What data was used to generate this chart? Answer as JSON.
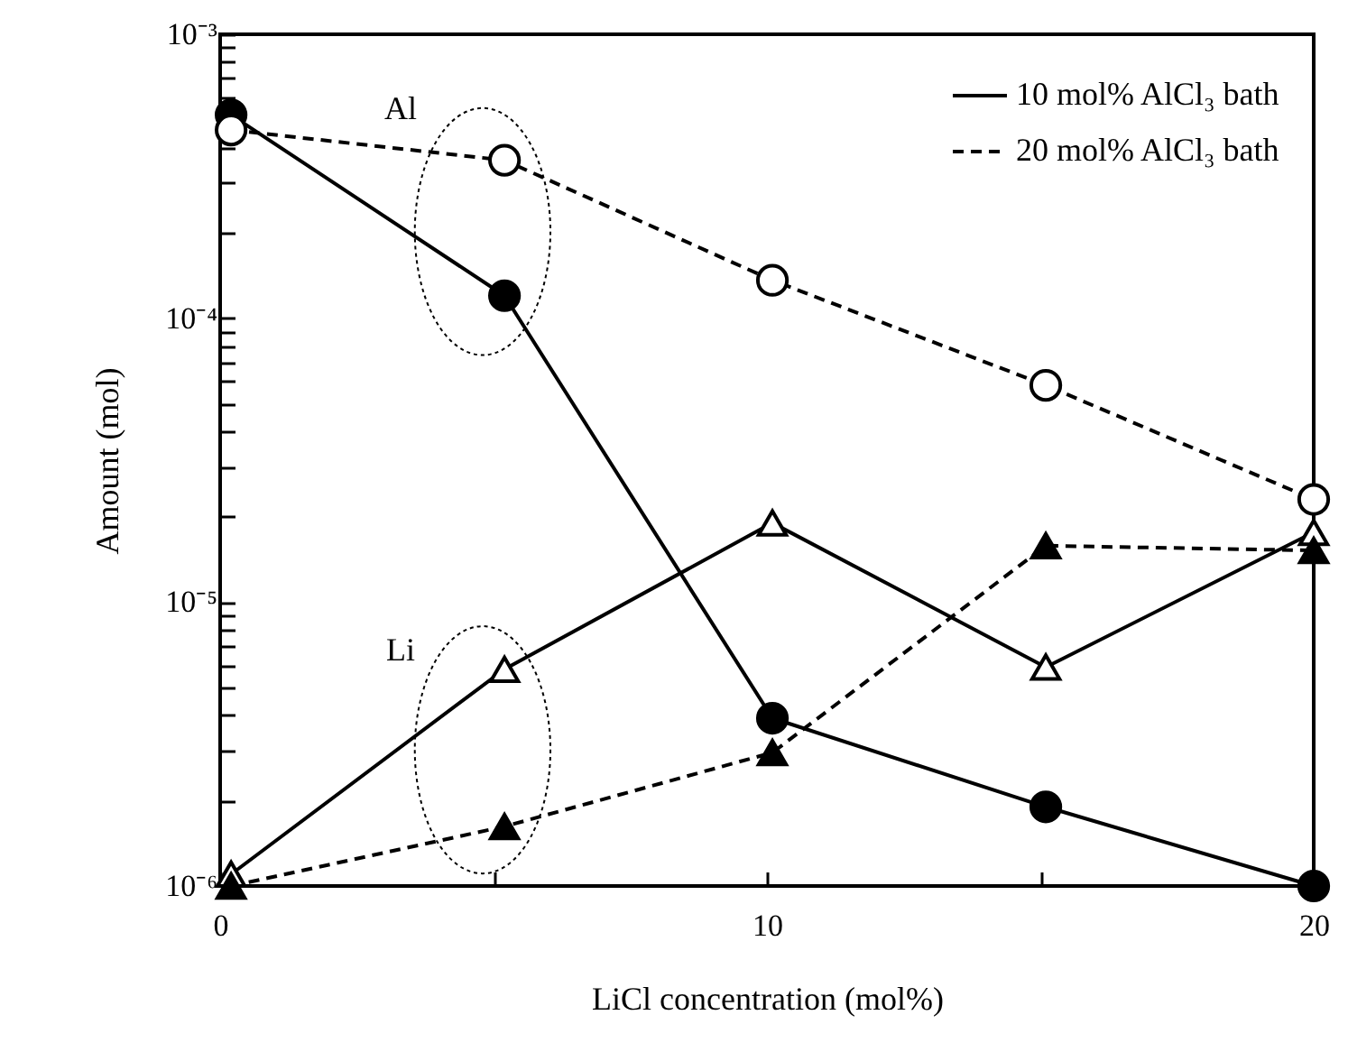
{
  "chart_data": {
    "type": "line",
    "xlabel": "LiCl concentration (mol%)",
    "ylabel": "Amount (mol)",
    "x": [
      0.2,
      5.2,
      10.1,
      15.1,
      20
    ],
    "series": [
      {
        "name": "10 mol% AlCl₃ bath",
        "color": "#000000",
        "marker": "circle",
        "line_style": "solid",
        "values": [
          0.00052,
          0.00012,
          3.9e-06,
          1.9e-06,
          1e-06
        ]
      },
      {
        "name": "20 mol% AlCl₃ bath",
        "color": "#000000",
        "marker": "circle-open",
        "line_style": "dashed",
        "values": [
          0.00046,
          0.00036,
          0.000136,
          5.8e-05,
          2.3e-05
        ]
      },
      {
        "color": "#000000",
        "marker": "triangle-open",
        "line_style": "solid",
        "values": [
          1.1e-06,
          5.8e-06,
          1.9e-05,
          5.9e-06,
          1.76e-05
        ]
      },
      {
        "color": "#000000",
        "marker": "triangle",
        "line_style": "dashed",
        "values": [
          1e-06,
          1.62e-06,
          2.95e-06,
          1.58e-05,
          1.52e-05
        ]
      }
    ],
    "annotations": [
      "Al",
      "Li"
    ],
    "log": "y",
    "legend": "top right",
    "grid": false,
    "xlim": [
      0,
      20
    ],
    "xticks": [
      0,
      {
        "value": 5,
        "label": null
      },
      10,
      {
        "value": 15,
        "label": null
      },
      20
    ],
    "ylim": [
      1e-06,
      0.001
    ],
    "yticks": [
      {
        "value": 1e-06,
        "label": "10⁻⁶"
      },
      {
        "value": 2e-06,
        "label": null
      },
      {
        "value": 3e-06,
        "label": null
      },
      {
        "value": 4e-06,
        "label": null
      },
      {
        "value": 5e-06,
        "label": null
      },
      {
        "value": 6e-06,
        "label": null
      },
      {
        "value": 7e-06,
        "label": null
      },
      {
        "value": 8e-06,
        "label": null
      },
      {
        "value": 9e-06,
        "label": null
      },
      {
        "value": 1e-05,
        "label": "10⁻⁵"
      },
      {
        "value": 2e-05,
        "label": null
      },
      {
        "value": 3e-05,
        "label": null
      },
      {
        "value": 4e-05,
        "label": null
      },
      {
        "value": 5e-05,
        "label": null
      },
      {
        "value": 6e-05,
        "label": null
      },
      {
        "value": 7e-05,
        "label": null
      },
      {
        "value": 8e-05,
        "label": null
      },
      {
        "value": 9e-05,
        "label": null
      },
      {
        "value": 0.0001,
        "label": "10⁻⁴"
      },
      {
        "value": 0.0002,
        "label": null
      },
      {
        "value": 0.0003,
        "label": null
      },
      {
        "value": 0.0004,
        "label": null
      },
      {
        "value": 0.0005,
        "label": null
      },
      {
        "value": 0.0006,
        "label": null
      },
      {
        "value": 0.0007,
        "label": null
      },
      {
        "value": 0.0008,
        "label": null
      },
      {
        "value": 0.0009,
        "label": null
      },
      {
        "value": 0.001,
        "label": "10⁻³"
      }
    ]
  }
}
